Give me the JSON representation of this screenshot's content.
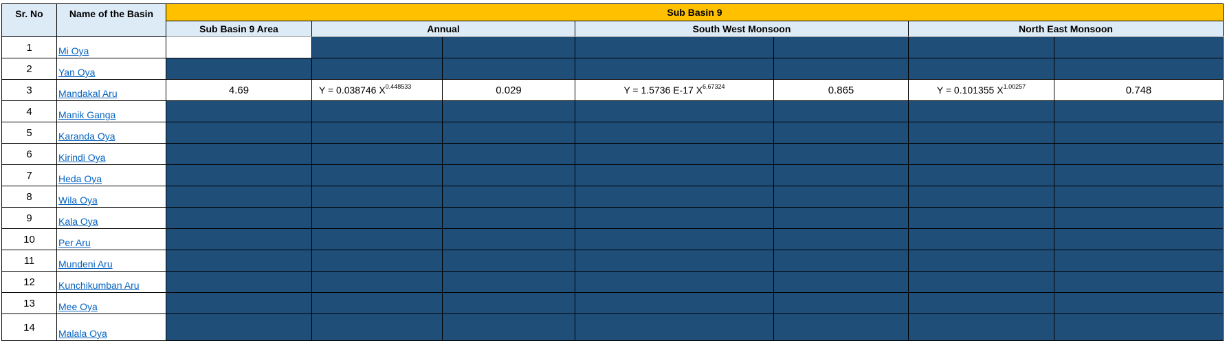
{
  "headers": {
    "sr_no": "Sr. No",
    "name": "Name of the Basin",
    "group": "Sub Basin 9",
    "area": "Sub Basin 9 Area",
    "annual": "Annual",
    "sw_monsoon": "South West Monsoon",
    "ne_monsoon": "North East Monsoon"
  },
  "colors": {
    "header_fill": "#DDEBF7",
    "group_fill": "#FFC000",
    "empty_fill": "#1F4E79",
    "link": "#0563C1"
  },
  "rows": [
    {
      "sr": "1",
      "name": "Mi Oya"
    },
    {
      "sr": "2",
      "name": "Yan Oya"
    },
    {
      "sr": "3",
      "name": "Mandakal Aru",
      "area": "4.69",
      "annual_eq": "Y = 0.038746 X",
      "annual_exp": "0.448533",
      "annual_r2": "0.029",
      "sw_eq": "Y = 1.5736 E-17 X",
      "sw_exp": "6.67324",
      "sw_r2": "0.865",
      "ne_eq": "Y = 0.101355 X",
      "ne_exp": "1.00257",
      "ne_r2": "0.748"
    },
    {
      "sr": "4",
      "name": "Manik Ganga"
    },
    {
      "sr": "5",
      "name": "Karanda Oya"
    },
    {
      "sr": "6",
      "name": "Kirindi Oya"
    },
    {
      "sr": "7",
      "name": "Heda Oya"
    },
    {
      "sr": "8",
      "name": "Wila Oya"
    },
    {
      "sr": "9",
      "name": "Kala Oya"
    },
    {
      "sr": "10",
      "name": "Per Aru"
    },
    {
      "sr": "11",
      "name": "Mundeni Aru"
    },
    {
      "sr": "12",
      "name": "Kunchikumban Aru"
    },
    {
      "sr": "13",
      "name": "Mee Oya"
    },
    {
      "sr": "14",
      "name": "Malala Oya"
    }
  ]
}
